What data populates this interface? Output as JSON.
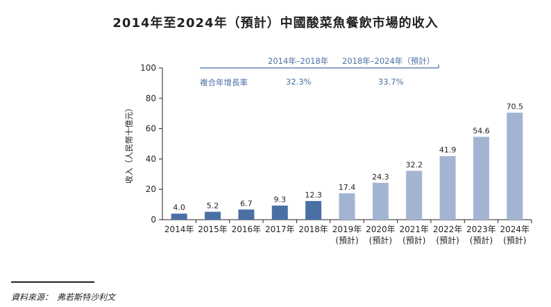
{
  "title": "2014年至2024年（預計）中國酸菜魚餐飲市場的收入",
  "cagr": {
    "row_label": "複合年增長率",
    "periods": [
      {
        "label": "2014年–2018年",
        "value": "32.3%"
      },
      {
        "label": "2018年–2024年（預計）",
        "value": "33.7%"
      }
    ]
  },
  "source": "資料來源：　弗若斯特沙利文",
  "colors": {
    "actual": "#4a6fa5",
    "forecast": "#a3b4d3",
    "axis": "#231f20",
    "accent_text": "#4a6fa5"
  },
  "chart_data": {
    "type": "bar",
    "title": "2014年至2024年（預計）中國酸菜魚餐飲市場的收入",
    "ylabel": "收入（人民幣十億元）",
    "xlabel": "",
    "ylim": [
      0,
      100
    ],
    "yticks": [
      0,
      20,
      40,
      60,
      80,
      100
    ],
    "grid": false,
    "categories": [
      [
        "2014年"
      ],
      [
        "2015年"
      ],
      [
        "2016年"
      ],
      [
        "2017年"
      ],
      [
        "2018年"
      ],
      [
        "2019年",
        "(預計)"
      ],
      [
        "2020年",
        "(預計)"
      ],
      [
        "2021年",
        "(預計)"
      ],
      [
        "2022年",
        "(預計)"
      ],
      [
        "2023年",
        "(預計)"
      ],
      [
        "2024年",
        "(預計)"
      ]
    ],
    "values": [
      4.0,
      5.2,
      6.7,
      9.3,
      12.3,
      17.4,
      24.3,
      32.2,
      41.9,
      54.6,
      70.5
    ],
    "value_labels": [
      "4.0",
      "5.2",
      "6.7",
      "9.3",
      "12.3",
      "17.4",
      "24.3",
      "32.2",
      "41.9",
      "54.6",
      "70.5"
    ],
    "forecast": [
      false,
      false,
      false,
      false,
      false,
      true,
      true,
      true,
      true,
      true,
      true
    ]
  }
}
